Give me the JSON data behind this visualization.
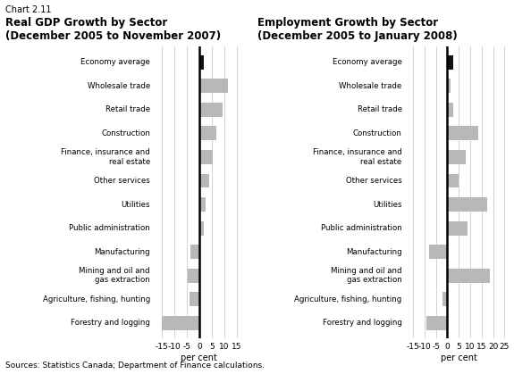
{
  "chart_label": "Chart 2.11",
  "gdp_title_line1": "Real GDP Growth by Sector",
  "gdp_title_line2": "(December 2005 to November 2007)",
  "emp_title_line1": "Employment Growth by Sector",
  "emp_title_line2": "(December 2005 to January 2008)",
  "categories": [
    "Economy average",
    "Wholesale trade",
    "Retail trade",
    "Construction",
    "Finance, insurance and\nreal estate",
    "Other services",
    "Utilities",
    "Public administration",
    "Manufacturing",
    "Mining and oil and\ngas extraction",
    "Agriculture, fishing, hunting",
    "Forestry and logging"
  ],
  "gdp_values": [
    2.0,
    11.5,
    9.5,
    7.0,
    5.5,
    4.0,
    2.5,
    2.0,
    -3.5,
    -4.5,
    -4.0,
    -15.0
  ],
  "emp_values": [
    2.5,
    1.5,
    2.5,
    13.5,
    8.0,
    5.0,
    17.5,
    9.0,
    -8.0,
    18.5,
    -2.0,
    -9.0
  ],
  "gdp_xlim": [
    -18,
    18
  ],
  "emp_xlim": [
    -18,
    28
  ],
  "gdp_xticks": [
    -15,
    -10,
    -5,
    0,
    5,
    10,
    15
  ],
  "emp_xticks": [
    -15,
    -10,
    -5,
    0,
    5,
    10,
    15,
    20,
    25
  ],
  "bar_color": "#b8b8b8",
  "economy_avg_color": "#111111",
  "background": "#ffffff",
  "source_text": "Sources: Statistics Canada; Department of Finance calculations.",
  "xlabel": "per cent",
  "grid_color": "#cccccc",
  "zero_line_color": "#000000"
}
